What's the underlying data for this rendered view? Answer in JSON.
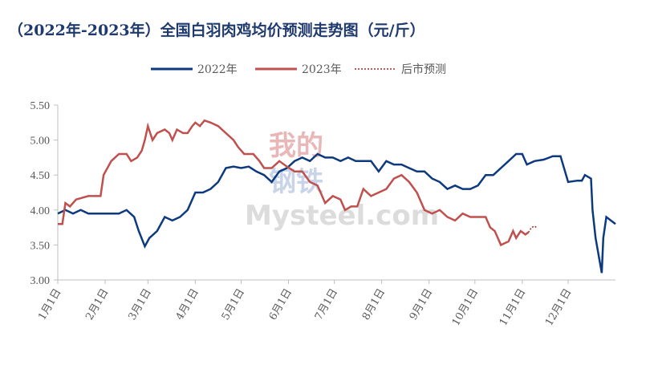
{
  "chart_data": {
    "type": "line",
    "title": "（2022年-2023年）全国白羽肉鸡均价预测走势图（元/斤）",
    "watermark": [
      "我的",
      "钢铁",
      "Mysteel.com"
    ],
    "xlim": [
      0,
      365
    ],
    "xticks": [
      {
        "value": 0,
        "label": "1月1日"
      },
      {
        "value": 31,
        "label": "2月1日"
      },
      {
        "value": 59,
        "label": "3月1日"
      },
      {
        "value": 90,
        "label": "4月1日"
      },
      {
        "value": 120,
        "label": "5月1日"
      },
      {
        "value": 151,
        "label": "6月1日"
      },
      {
        "value": 181,
        "label": "7月1日"
      },
      {
        "value": 212,
        "label": "8月1日"
      },
      {
        "value": 243,
        "label": "9月1日"
      },
      {
        "value": 273,
        "label": "10月1日"
      },
      {
        "value": 304,
        "label": "11月1日"
      },
      {
        "value": 334,
        "label": "12月1日"
      }
    ],
    "ylim": [
      3.0,
      5.5
    ],
    "yticks": [
      {
        "value": 3.0,
        "label": "3.00"
      },
      {
        "value": 3.5,
        "label": "3.50"
      },
      {
        "value": 4.0,
        "label": "4.00"
      },
      {
        "value": 4.5,
        "label": "4.50"
      },
      {
        "value": 5.0,
        "label": "5.00"
      },
      {
        "value": 5.5,
        "label": "5.50"
      }
    ],
    "legend": "top",
    "series": [
      {
        "name": "2022年",
        "color": "#0d3a7e",
        "line_style": "solid",
        "x": [
          0,
          5,
          10,
          15,
          20,
          25,
          30,
          35,
          40,
          45,
          50,
          53,
          57,
          60,
          65,
          70,
          75,
          80,
          85,
          90,
          95,
          100,
          105,
          110,
          115,
          120,
          125,
          130,
          135,
          140,
          145,
          150,
          155,
          160,
          165,
          170,
          175,
          180,
          185,
          190,
          195,
          200,
          205,
          210,
          215,
          220,
          225,
          230,
          235,
          240,
          245,
          250,
          255,
          260,
          265,
          270,
          275,
          280,
          285,
          290,
          295,
          300,
          304,
          307,
          312,
          318,
          324,
          329,
          334,
          340,
          343,
          345,
          349,
          350,
          352,
          356,
          357,
          359,
          362,
          365
        ],
        "values": [
          3.95,
          4.0,
          3.95,
          4.0,
          3.95,
          3.95,
          3.95,
          3.95,
          3.95,
          4.0,
          3.9,
          3.7,
          3.48,
          3.6,
          3.7,
          3.9,
          3.85,
          3.9,
          4.0,
          4.25,
          4.25,
          4.3,
          4.4,
          4.6,
          4.62,
          4.6,
          4.62,
          4.55,
          4.5,
          4.4,
          4.55,
          4.6,
          4.7,
          4.75,
          4.7,
          4.8,
          4.75,
          4.75,
          4.7,
          4.75,
          4.7,
          4.7,
          4.7,
          4.55,
          4.7,
          4.65,
          4.65,
          4.6,
          4.55,
          4.55,
          4.45,
          4.4,
          4.3,
          4.35,
          4.3,
          4.3,
          4.35,
          4.5,
          4.5,
          4.6,
          4.7,
          4.8,
          4.8,
          4.65,
          4.7,
          4.72,
          4.77,
          4.77,
          4.4,
          4.42,
          4.42,
          4.5,
          4.45,
          4.0,
          3.6,
          3.1,
          3.6,
          3.9,
          3.85,
          3.8
        ]
      },
      {
        "name": "2023年",
        "color": "#c0504d",
        "line_style": "solid",
        "x": [
          0,
          3,
          5,
          8,
          12,
          20,
          28,
          30,
          35,
          40,
          45,
          48,
          52,
          55,
          57,
          59,
          62,
          65,
          70,
          73,
          75,
          78,
          82,
          85,
          88,
          90,
          93,
          96,
          100,
          105,
          110,
          115,
          118,
          122,
          128,
          132,
          135,
          140,
          145,
          150,
          155,
          160,
          165,
          170,
          175,
          180,
          185,
          188,
          192,
          196,
          200,
          205,
          210,
          215,
          220,
          225,
          230,
          235,
          240,
          245,
          250,
          255,
          260,
          265,
          270,
          275,
          280,
          283,
          286,
          290,
          295,
          298,
          300,
          303,
          306,
          308
        ],
        "values": [
          3.8,
          3.8,
          4.1,
          4.05,
          4.15,
          4.2,
          4.2,
          4.5,
          4.7,
          4.8,
          4.8,
          4.7,
          4.75,
          4.85,
          5.0,
          5.2,
          5.0,
          5.1,
          5.15,
          5.1,
          5.0,
          5.15,
          5.1,
          5.1,
          5.2,
          5.25,
          5.2,
          5.28,
          5.25,
          5.2,
          5.1,
          5.0,
          4.9,
          4.8,
          4.8,
          4.7,
          4.6,
          4.6,
          4.7,
          4.62,
          4.55,
          4.55,
          4.4,
          4.35,
          4.1,
          4.2,
          4.15,
          4.0,
          4.05,
          4.05,
          4.3,
          4.2,
          4.25,
          4.3,
          4.45,
          4.5,
          4.4,
          4.25,
          4.0,
          3.95,
          4.0,
          3.9,
          3.85,
          3.95,
          3.9,
          3.9,
          3.9,
          3.75,
          3.7,
          3.5,
          3.55,
          3.7,
          3.6,
          3.7,
          3.65,
          3.68
        ]
      },
      {
        "name": "后市预测",
        "color": "#a0282a",
        "line_style": "dotted",
        "x": [
          308,
          310,
          312,
          314
        ],
        "values": [
          3.68,
          3.75,
          3.77,
          3.74
        ]
      }
    ]
  }
}
